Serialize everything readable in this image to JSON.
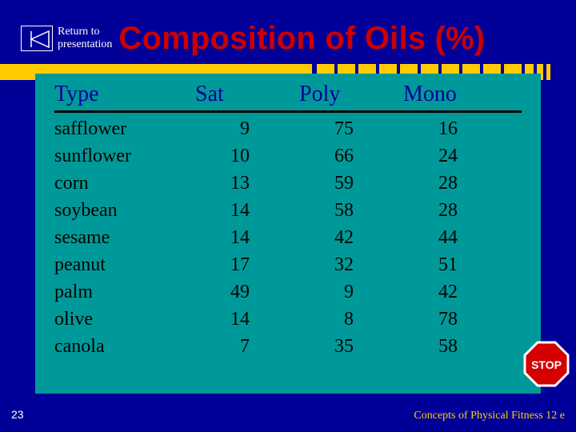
{
  "header": {
    "return_line1": "Return to",
    "return_line2": "presentation",
    "title": "Composition of Oils (%)"
  },
  "table": {
    "columns": [
      "Type",
      "Sat",
      "Poly",
      "Mono"
    ],
    "rows": [
      [
        "safflower",
        "9",
        "75",
        "16"
      ],
      [
        "sunflower",
        "10",
        "66",
        "24"
      ],
      [
        "corn",
        "13",
        "59",
        "28"
      ],
      [
        "soybean",
        "14",
        "58",
        "28"
      ],
      [
        "sesame",
        "14",
        "42",
        "44"
      ],
      [
        "peanut",
        "17",
        "32",
        "51"
      ],
      [
        "palm",
        "49",
        "9",
        "42"
      ],
      [
        "olive",
        "14",
        "8",
        "78"
      ],
      [
        "canola",
        "7",
        "35",
        "58"
      ]
    ],
    "header_color": "#000099",
    "header_fontsize": 28,
    "cell_fontsize": 24,
    "underline_color": "#000000",
    "panel_bg": "#009999"
  },
  "decor": {
    "barcode_color": "#ffcc00",
    "barcode_solid_width": 390,
    "barcode_tick_count": 13
  },
  "footer": {
    "page_number": "23",
    "source": "Concepts of Physical Fitness 12 e"
  },
  "icons": {
    "back_arrow": "back-arrow-icon",
    "stop": "stop-icon",
    "stop_label": "STOP"
  },
  "colors": {
    "page_bg": "#000099",
    "title": "#cc0000",
    "footer_text": "#ffffff",
    "source_text": "#ffcc00",
    "stop_red": "#d40000",
    "stop_white": "#ffffff"
  }
}
